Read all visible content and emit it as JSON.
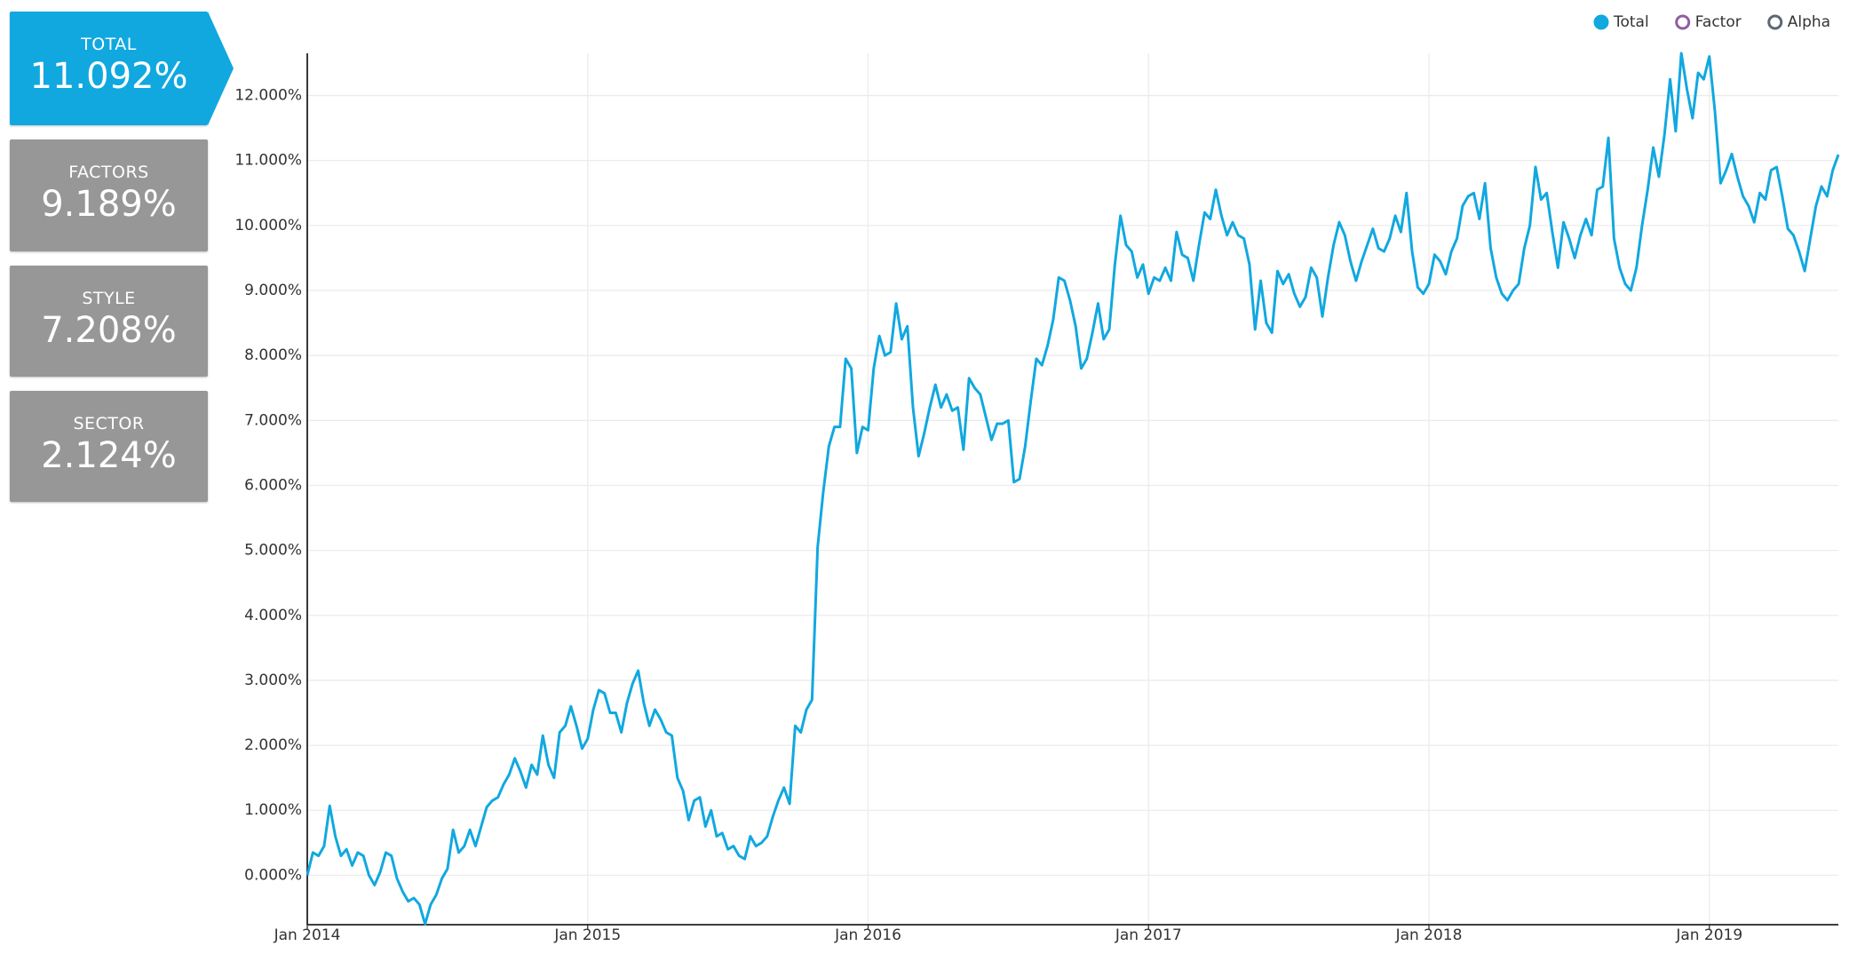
{
  "summary": [
    {
      "label": "TOTAL",
      "value": "11.092%"
    },
    {
      "label": "FACTORS",
      "value": "9.189%"
    },
    {
      "label": "STYLE",
      "value": "7.208%"
    },
    {
      "label": "SECTOR",
      "value": "2.124%"
    }
  ],
  "chart_data": {
    "type": "line",
    "x": [
      2014,
      2014.02,
      2014.04,
      2014.06,
      2014.08,
      2014.1,
      2014.12,
      2014.14,
      2014.16,
      2014.18,
      2014.2,
      2014.22,
      2014.24,
      2014.26,
      2014.28,
      2014.3,
      2014.32,
      2014.34,
      2014.36,
      2014.38,
      2014.4,
      2014.42,
      2014.44,
      2014.46,
      2014.48,
      2014.5,
      2014.52,
      2014.54,
      2014.56,
      2014.58,
      2014.6,
      2014.62,
      2014.64,
      2014.66,
      2014.68,
      2014.7,
      2014.72,
      2014.74,
      2014.76,
      2014.78,
      2014.8,
      2014.82,
      2014.84,
      2014.86,
      2014.88,
      2014.9,
      2014.92,
      2014.94,
      2014.96,
      2014.98,
      2015,
      2015.02,
      2015.04,
      2015.06,
      2015.08,
      2015.1,
      2015.12,
      2015.14,
      2015.16,
      2015.18,
      2015.2,
      2015.22,
      2015.24,
      2015.26,
      2015.28,
      2015.3,
      2015.32,
      2015.34,
      2015.36,
      2015.38,
      2015.4,
      2015.42,
      2015.44,
      2015.46,
      2015.48,
      2015.5,
      2015.52,
      2015.54,
      2015.56,
      2015.58,
      2015.6,
      2015.62,
      2015.64,
      2015.66,
      2015.68,
      2015.7,
      2015.72,
      2015.74,
      2015.76,
      2015.78,
      2015.8,
      2015.82,
      2015.84,
      2015.86,
      2015.88,
      2015.9,
      2015.92,
      2015.94,
      2015.96,
      2015.98,
      2016,
      2016.02,
      2016.04,
      2016.06,
      2016.08,
      2016.1,
      2016.12,
      2016.14,
      2016.16,
      2016.18,
      2016.2,
      2016.22,
      2016.24,
      2016.26,
      2016.28,
      2016.3,
      2016.32,
      2016.34,
      2016.36,
      2016.38,
      2016.4,
      2016.42,
      2016.44,
      2016.46,
      2016.48,
      2016.5,
      2016.52,
      2016.54,
      2016.56,
      2016.58,
      2016.6,
      2016.62,
      2016.64,
      2016.66,
      2016.68,
      2016.7,
      2016.72,
      2016.74,
      2016.76,
      2016.78,
      2016.8,
      2016.82,
      2016.84,
      2016.86,
      2016.88,
      2016.9,
      2016.92,
      2016.94,
      2016.96,
      2016.98,
      2017,
      2017.02,
      2017.04,
      2017.06,
      2017.08,
      2017.1,
      2017.12,
      2017.14,
      2017.16,
      2017.18,
      2017.2,
      2017.22,
      2017.24,
      2017.26,
      2017.28,
      2017.3,
      2017.32,
      2017.34,
      2017.36,
      2017.38,
      2017.4,
      2017.42,
      2017.44,
      2017.46,
      2017.48,
      2017.5,
      2017.52,
      2017.54,
      2017.56,
      2017.58,
      2017.6,
      2017.62,
      2017.64,
      2017.66,
      2017.68,
      2017.7,
      2017.72,
      2017.74,
      2017.76,
      2017.78,
      2017.8,
      2017.82,
      2017.84,
      2017.86,
      2017.88,
      2017.9,
      2017.92,
      2017.94,
      2017.96,
      2017.98,
      2018,
      2018.02,
      2018.04,
      2018.06,
      2018.08,
      2018.1,
      2018.12,
      2018.14,
      2018.16,
      2018.18,
      2018.2,
      2018.22,
      2018.24,
      2018.26,
      2018.28,
      2018.3,
      2018.32,
      2018.34,
      2018.36,
      2018.38,
      2018.4,
      2018.42,
      2018.44,
      2018.46,
      2018.48,
      2018.5,
      2018.52,
      2018.54,
      2018.56,
      2018.58,
      2018.6,
      2018.62,
      2018.64,
      2018.66,
      2018.68,
      2018.7,
      2018.72,
      2018.74,
      2018.76,
      2018.78,
      2018.8,
      2018.82,
      2018.84,
      2018.86,
      2018.88,
      2018.9,
      2018.92,
      2018.94,
      2018.96,
      2018.98,
      2019,
      2019.02,
      2019.04,
      2019.06,
      2019.08,
      2019.1,
      2019.12,
      2019.14,
      2019.16,
      2019.18,
      2019.2,
      2019.22,
      2019.24,
      2019.26,
      2019.28,
      2019.3,
      2019.32,
      2019.34,
      2019.36,
      2019.38,
      2019.4,
      2019.42,
      2019.44,
      2019.46
    ],
    "series": [
      {
        "name": "Total",
        "color": "#11a8e0",
        "values": [
          0,
          0.35,
          0.3,
          0.45,
          1.07,
          0.6,
          0.3,
          0.4,
          0.15,
          0.35,
          0.3,
          0,
          -0.15,
          0.05,
          0.35,
          0.3,
          -0.05,
          -0.25,
          -0.4,
          -0.35,
          -0.45,
          -0.75,
          -0.45,
          -0.3,
          -0.05,
          0.1,
          0.7,
          0.35,
          0.45,
          0.7,
          0.45,
          0.75,
          1.05,
          1.15,
          1.2,
          1.4,
          1.55,
          1.8,
          1.6,
          1.35,
          1.7,
          1.55,
          2.15,
          1.7,
          1.5,
          2.2,
          2.3,
          2.6,
          2.3,
          1.95,
          2.1,
          2.55,
          2.85,
          2.8,
          2.5,
          2.5,
          2.2,
          2.65,
          2.95,
          3.15,
          2.65,
          2.3,
          2.55,
          2.4,
          2.2,
          2.15,
          1.5,
          1.3,
          0.85,
          1.15,
          1.2,
          0.75,
          1.0,
          0.6,
          0.65,
          0.4,
          0.45,
          0.3,
          0.25,
          0.6,
          0.45,
          0.5,
          0.6,
          0.9,
          1.15,
          1.35,
          1.1,
          2.3,
          2.2,
          2.55,
          2.7,
          5.05,
          5.9,
          6.6,
          6.9,
          6.9,
          7.95,
          7.8,
          6.5,
          6.9,
          6.85,
          7.8,
          8.3,
          8.0,
          8.05,
          8.8,
          8.25,
          8.45,
          7.2,
          6.45,
          6.8,
          7.2,
          7.55,
          7.2,
          7.4,
          7.15,
          7.2,
          6.55,
          7.65,
          7.5,
          7.4,
          7.05,
          6.7,
          6.95,
          6.95,
          7.0,
          6.05,
          6.1,
          6.6,
          7.3,
          7.95,
          7.85,
          8.15,
          8.55,
          9.2,
          9.15,
          8.85,
          8.45,
          7.8,
          7.95,
          8.35,
          8.8,
          8.25,
          8.4,
          9.4,
          10.15,
          9.7,
          9.6,
          9.2,
          9.4,
          8.95,
          9.2,
          9.15,
          9.35,
          9.15,
          9.9,
          9.55,
          9.5,
          9.15,
          9.7,
          10.2,
          10.1,
          10.55,
          10.15,
          9.85,
          10.05,
          9.85,
          9.8,
          9.4,
          8.4,
          9.15,
          8.5,
          8.35,
          9.3,
          9.1,
          9.25,
          8.95,
          8.75,
          8.9,
          9.35,
          9.2,
          8.6,
          9.2,
          9.7,
          10.05,
          9.85,
          9.45,
          9.15,
          9.45,
          9.7,
          9.95,
          9.65,
          9.6,
          9.8,
          10.15,
          9.9,
          10.5,
          9.6,
          9.05,
          8.95,
          9.1,
          9.55,
          9.45,
          9.25,
          9.6,
          9.8,
          10.3,
          10.45,
          10.5,
          10.1,
          10.65,
          9.65,
          9.2,
          8.95,
          8.85,
          9.0,
          9.1,
          9.65,
          10.0,
          10.9,
          10.4,
          10.5,
          9.9,
          9.35,
          10.05,
          9.8,
          9.5,
          9.85,
          10.1,
          9.85,
          10.55,
          10.6,
          11.35,
          9.8,
          9.35,
          9.1,
          9.0,
          9.35,
          10.0,
          10.55,
          11.2,
          10.75,
          11.4,
          12.25,
          11.45,
          12.65,
          12.1,
          11.65,
          12.35,
          12.25,
          12.6,
          11.75,
          10.65,
          10.85,
          11.1,
          10.75,
          10.45,
          10.3,
          10.05,
          10.5,
          10.4,
          10.85,
          10.9,
          10.45,
          9.95,
          9.85,
          9.6,
          9.3,
          9.8,
          10.3,
          10.6,
          10.45,
          10.85,
          11.09
        ]
      }
    ],
    "hidden_series": [
      {
        "name": "Factor",
        "color": "#8e5ea2"
      },
      {
        "name": "Alpha",
        "color": "#5b6875"
      }
    ],
    "xlim": [
      2014,
      2019.46
    ],
    "xticks": [
      {
        "value": 2014,
        "label": "Jan 2014"
      },
      {
        "value": 2015,
        "label": "Jan 2015"
      },
      {
        "value": 2016,
        "label": "Jan 2016"
      },
      {
        "value": 2017,
        "label": "Jan 2017"
      },
      {
        "value": 2018,
        "label": "Jan 2018"
      },
      {
        "value": 2019,
        "label": "Jan 2019"
      }
    ],
    "ylim": [
      -0.76,
      12.65
    ],
    "yticks": [
      {
        "value": 0,
        "label": "0.000%"
      },
      {
        "value": 1,
        "label": "1.000%"
      },
      {
        "value": 2,
        "label": "2.000%"
      },
      {
        "value": 3,
        "label": "3.000%"
      },
      {
        "value": 4,
        "label": "4.000%"
      },
      {
        "value": 5,
        "label": "5.000%"
      },
      {
        "value": 6,
        "label": "6.000%"
      },
      {
        "value": 7,
        "label": "7.000%"
      },
      {
        "value": 8,
        "label": "8.000%"
      },
      {
        "value": 9,
        "label": "9.000%"
      },
      {
        "value": 10,
        "label": "10.000%"
      },
      {
        "value": 11,
        "label": "11.000%"
      },
      {
        "value": 12,
        "label": "12.000%"
      }
    ],
    "grid": true,
    "legend": "top-right"
  }
}
